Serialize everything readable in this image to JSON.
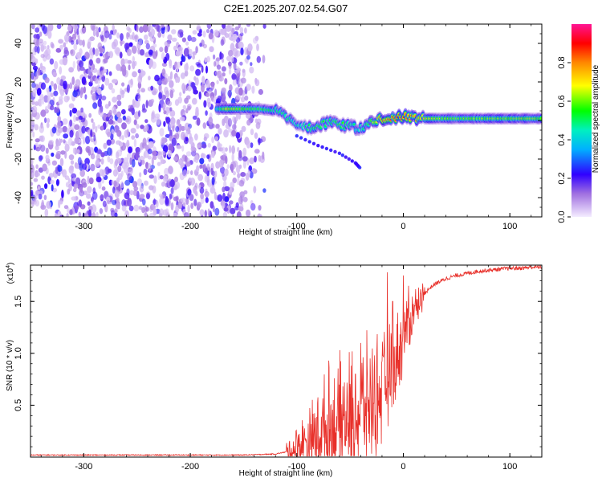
{
  "page_title": "C2E1.2025.207.02.54.G07",
  "chart_data": [
    {
      "type": "heatmap",
      "title": "C2E1.2025.207.02.54.G07",
      "xlabel": "Height of straight line (km)",
      "ylabel": "Frequency (Hz)",
      "xlim": [
        -350,
        130
      ],
      "ylim": [
        -50,
        50
      ],
      "x_ticks": [
        -300,
        -200,
        -100,
        0,
        100
      ],
      "x_tick_labels": [
        "-300",
        "-200",
        "-100",
        "0",
        "100"
      ],
      "y_ticks": [
        -40,
        -20,
        0,
        20,
        40
      ],
      "y_tick_labels": [
        "-40",
        "-20",
        "0",
        "20",
        "40"
      ],
      "colorbar": {
        "label": "Normalized spectral amplitude",
        "range": [
          0,
          1
        ],
        "ticks": [
          0.0,
          0.2,
          0.4,
          0.6,
          0.8
        ],
        "tick_labels": [
          "0.0",
          "0.2",
          "0.4",
          "0.6",
          "0.8"
        ],
        "colors": [
          "#f4ecff",
          "#8a2be2",
          "#0000ff",
          "#00e0ff",
          "#00ff00",
          "#ffff00",
          "#ff8800",
          "#ff0000",
          "#ff1493"
        ]
      },
      "noise_region": {
        "x_start": -350,
        "x_end": -130,
        "description_level": "low"
      },
      "signal_trace": [
        {
          "x": -175,
          "f": 6,
          "amp": 0.45
        },
        {
          "x": -165,
          "f": 6,
          "amp": 0.7
        },
        {
          "x": -150,
          "f": 6,
          "amp": 0.6
        },
        {
          "x": -135,
          "f": 6,
          "amp": 0.55
        },
        {
          "x": -120,
          "f": 5,
          "amp": 0.5
        },
        {
          "x": -110,
          "f": 2,
          "amp": 0.5
        },
        {
          "x": -100,
          "f": -2,
          "amp": 0.45
        },
        {
          "x": -90,
          "f": -4,
          "amp": 0.5
        },
        {
          "x": -80,
          "f": -3,
          "amp": 0.55
        },
        {
          "x": -70,
          "f": -1,
          "amp": 0.5
        },
        {
          "x": -60,
          "f": -2,
          "amp": 0.55
        },
        {
          "x": -50,
          "f": -3,
          "amp": 0.5
        },
        {
          "x": -40,
          "f": -4,
          "amp": 0.45
        },
        {
          "x": -30,
          "f": 0,
          "amp": 0.6
        },
        {
          "x": -20,
          "f": 1,
          "amp": 0.8
        },
        {
          "x": -10,
          "f": 1,
          "amp": 0.85
        },
        {
          "x": 0,
          "f": 2,
          "amp": 0.85
        },
        {
          "x": 10,
          "f": 1,
          "amp": 0.8
        },
        {
          "x": 20,
          "f": 1,
          "amp": 0.7
        },
        {
          "x": 40,
          "f": 1,
          "amp": 0.6
        },
        {
          "x": 60,
          "f": 1,
          "amp": 0.6
        },
        {
          "x": 80,
          "f": 1,
          "amp": 0.6
        },
        {
          "x": 100,
          "f": 1,
          "amp": 0.6
        },
        {
          "x": 130,
          "f": 1,
          "amp": 0.6
        }
      ],
      "secondary_branch": [
        {
          "x": -100,
          "f": -8
        },
        {
          "x": -80,
          "f": -13
        },
        {
          "x": -60,
          "f": -17
        },
        {
          "x": -45,
          "f": -22
        },
        {
          "x": -40,
          "f": -25
        }
      ]
    },
    {
      "type": "line",
      "title": "",
      "xlabel": "Height of straight line (km)",
      "ylabel": "SNR (10 * v/v)",
      "scale_label": "(x10",
      "scale_exponent": "4",
      "scale_close": ")",
      "line_color": "#e8302a",
      "xlim": [
        -350,
        130
      ],
      "ylim": [
        0,
        1.85
      ],
      "x_ticks": [
        -300,
        -200,
        -100,
        0,
        100
      ],
      "x_tick_labels": [
        "-300",
        "-200",
        "-100",
        "0",
        "100"
      ],
      "y_ticks": [
        0.5,
        1.0,
        1.5
      ],
      "y_tick_labels": [
        "0.5",
        "1.0",
        "1.5"
      ],
      "series": [
        {
          "x": [
            -350,
            -300,
            -250,
            -200,
            -150,
            -120,
            -110,
            -100,
            -95,
            -90,
            -85,
            -80,
            -75,
            -70,
            -65,
            -60,
            -55,
            -50,
            -45,
            -40,
            -35,
            -30,
            -25,
            -20,
            -15,
            -10,
            -5,
            0,
            5,
            10,
            15,
            20,
            25,
            30,
            40,
            50,
            60,
            70,
            80,
            90,
            100,
            110,
            120,
            130
          ],
          "y": [
            0.02,
            0.02,
            0.02,
            0.02,
            0.02,
            0.03,
            0.05,
            0.08,
            0.12,
            0.15,
            0.18,
            0.22,
            0.25,
            0.28,
            0.3,
            0.33,
            0.35,
            0.37,
            0.4,
            0.45,
            0.5,
            0.55,
            0.6,
            0.65,
            0.75,
            0.85,
            1.0,
            1.15,
            1.3,
            1.42,
            1.5,
            1.58,
            1.63,
            1.67,
            1.72,
            1.75,
            1.77,
            1.79,
            1.8,
            1.81,
            1.82,
            1.82,
            1.83,
            1.83
          ]
        }
      ],
      "spikes": [
        {
          "x": -70,
          "y": 0.93
        },
        {
          "x": -45,
          "y": 0.8
        },
        {
          "x": -40,
          "y": 1.1
        },
        {
          "x": -15,
          "y": 1.78
        },
        {
          "x": -10,
          "y": 1.5
        },
        {
          "x": 0,
          "y": 1.75
        },
        {
          "x": 5,
          "y": 1.65
        }
      ]
    }
  ]
}
